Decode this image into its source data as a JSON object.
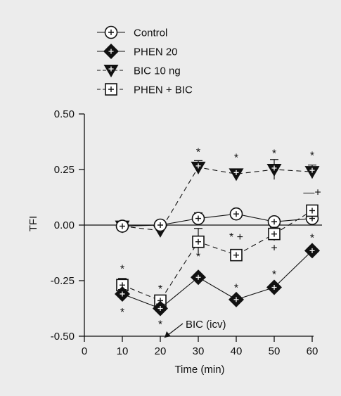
{
  "colors": {
    "background": "#ececec",
    "ink": "#111111",
    "open_fill": "#ffffff"
  },
  "chart_data": {
    "type": "line",
    "title": "",
    "xlabel": "Time (min)",
    "ylabel": "TFI",
    "xlim": [
      0,
      60
    ],
    "ylim": [
      -0.5,
      0.5
    ],
    "xticks": [
      0,
      10,
      20,
      30,
      40,
      50,
      60
    ],
    "xtick_labels": [
      "0",
      "10",
      "20",
      "30",
      "40",
      "50",
      "60"
    ],
    "yticks": [
      -0.5,
      -0.25,
      0.0,
      0.25,
      0.5
    ],
    "ytick_labels": [
      "-0.50",
      "-0.25",
      "0.00",
      "0.25",
      "0.50"
    ],
    "grid": false,
    "legend_position": "top-left",
    "x": [
      10,
      20,
      30,
      40,
      50,
      60
    ],
    "series": [
      {
        "name": "Control",
        "marker": "circle-open",
        "line": "solid",
        "values": [
          -0.005,
          0.0,
          0.03,
          0.05,
          0.015,
          0.03
        ],
        "errors": [
          0.01,
          0.01,
          0.025,
          0.02,
          0.02,
          0.02
        ]
      },
      {
        "name": "PHEN 20",
        "marker": "diamond-filled",
        "line": "solid",
        "values": [
          -0.31,
          -0.375,
          -0.235,
          -0.335,
          -0.28,
          -0.115
        ],
        "errors": [
          0.02,
          0.02,
          0.015,
          0.015,
          0.015,
          0.015
        ]
      },
      {
        "name": "BIC 10 ng",
        "marker": "triangle-down-filled",
        "line": "dashed",
        "values": [
          -0.005,
          -0.025,
          0.26,
          0.23,
          0.25,
          0.24
        ],
        "errors": [
          0.01,
          0.02,
          0.03,
          0.01,
          0.045,
          0.03
        ]
      },
      {
        "name": "PHEN + BIC",
        "marker": "square-open",
        "line": "dashed",
        "values": [
          -0.27,
          -0.34,
          -0.075,
          -0.135,
          -0.04,
          0.065
        ],
        "errors": [
          0.03,
          0.025,
          0.06,
          0.01,
          0.03,
          0.015
        ]
      }
    ],
    "significance_marks": [
      {
        "x": 10,
        "y": -0.195,
        "text": "*"
      },
      {
        "x": 10,
        "y": -0.39,
        "text": "*"
      },
      {
        "x": 20,
        "y": -0.285,
        "text": "*"
      },
      {
        "x": 20,
        "y": -0.445,
        "text": "*"
      },
      {
        "x": 30,
        "y": 0.33,
        "text": "*"
      },
      {
        "x": 30,
        "y": -0.14,
        "text": "*"
      },
      {
        "x": 40,
        "y": 0.305,
        "text": "*"
      },
      {
        "x": 40,
        "y": -0.05,
        "text": "* +"
      },
      {
        "x": 40,
        "y": -0.28,
        "text": "*"
      },
      {
        "x": 50,
        "y": 0.325,
        "text": "*"
      },
      {
        "x": 50,
        "y": -0.1,
        "text": "+"
      },
      {
        "x": 50,
        "y": -0.22,
        "text": "*"
      },
      {
        "x": 60,
        "y": 0.315,
        "text": "*"
      },
      {
        "x": 60,
        "y": 0.15,
        "text": "—+"
      },
      {
        "x": 60,
        "y": -0.055,
        "text": "*"
      }
    ],
    "annotations": [
      {
        "text": "BIC (icv)",
        "x": 20,
        "y": -0.5
      }
    ]
  }
}
